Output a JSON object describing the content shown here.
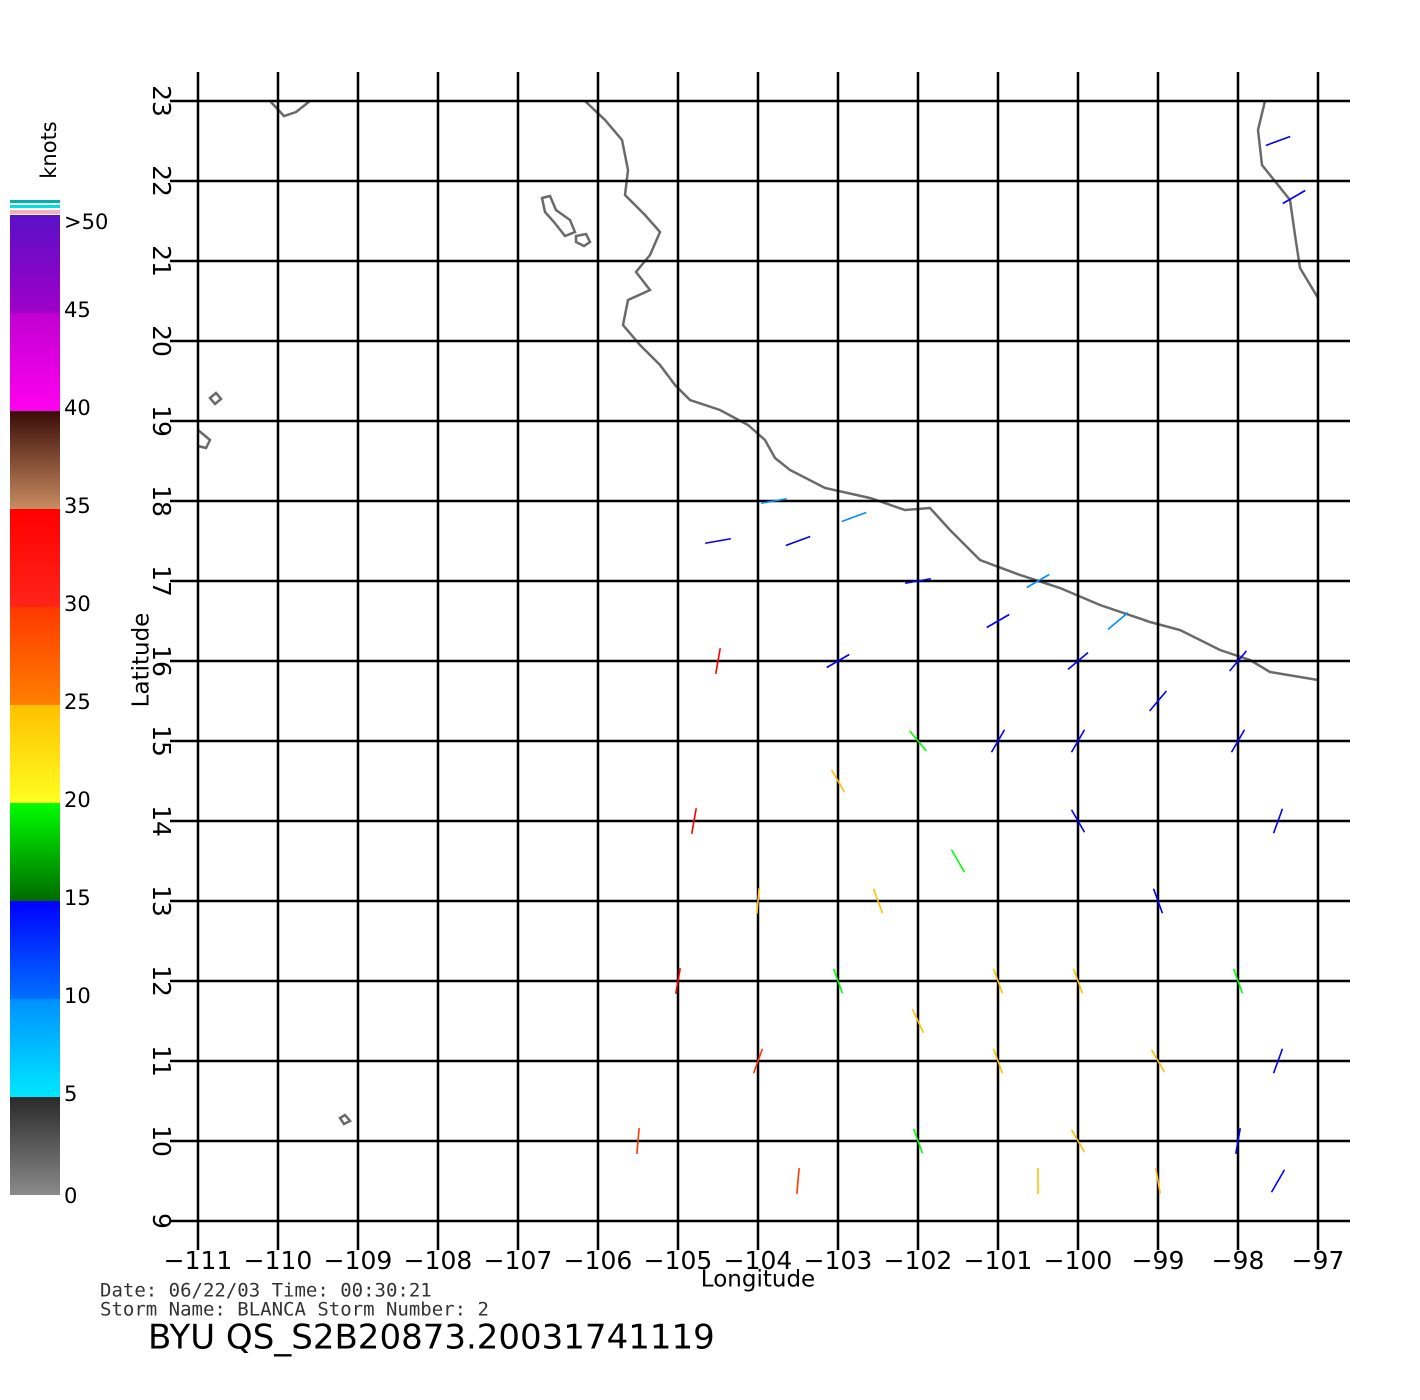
{
  "chart_data": {
    "type": "wind-map",
    "x_label": "Longitude",
    "y_label": "Latitude",
    "xlim": [
      -111,
      -97
    ],
    "ylim": [
      9,
      23
    ],
    "xticks": [
      {
        "value": -111,
        "label": "−111"
      },
      {
        "value": -110,
        "label": "−110"
      },
      {
        "value": -109,
        "label": "−109"
      },
      {
        "value": -108,
        "label": "−108"
      },
      {
        "value": -107,
        "label": "−107"
      },
      {
        "value": -106,
        "label": "−106"
      },
      {
        "value": -105,
        "label": "−105"
      },
      {
        "value": -104,
        "label": "−104"
      },
      {
        "value": -103,
        "label": "−103"
      },
      {
        "value": -102,
        "label": "−102"
      },
      {
        "value": -101,
        "label": "−101"
      },
      {
        "value": -100,
        "label": "−100"
      },
      {
        "value": -99,
        "label": "−99"
      },
      {
        "value": -98,
        "label": "−98"
      },
      {
        "value": -97,
        "label": "−97"
      }
    ],
    "yticks": [
      9,
      10,
      11,
      12,
      13,
      14,
      15,
      16,
      17,
      18,
      19,
      20,
      21,
      22,
      23
    ],
    "grid": true,
    "colorbar": {
      "label": "knots",
      "range": [
        0,
        50
      ],
      "ticks": [
        0,
        5,
        10,
        15,
        20,
        25,
        30,
        35,
        40,
        45,
        {
          "value": 50,
          "label": ">50"
        }
      ],
      "colors": [
        [
          "#8a8a8a",
          "#2a2a2a"
        ],
        [
          "#00e8ff",
          "#0090ff"
        ],
        [
          "#0070ff",
          "#0000ff"
        ],
        [
          "#006a00",
          "#00ff00"
        ],
        [
          "#ffff20",
          "#ffc000"
        ],
        [
          "#ff8000",
          "#ff3800"
        ],
        [
          "#ff2418",
          "#ff0000"
        ],
        [
          "#c88c60",
          "#3a0c08"
        ],
        [
          "#ff00f0",
          "#c000d0"
        ],
        [
          "#a000c8",
          "#5a10c8"
        ]
      ]
    },
    "winds": {
      "lon": [
        -104.5,
        -104.8,
        -105,
        -105.5,
        -104,
        -103.5,
        -103,
        -102.5,
        -101,
        -100,
        -99,
        -102,
        -103,
        -101.5,
        -104,
        -103.5,
        -102,
        -101,
        -100,
        -99,
        -98,
        -97.5,
        -100,
        -99,
        -98,
        -97.5,
        -98,
        -97.5,
        -103.8,
        -102.8,
        -100.5,
        -99.5,
        -98,
        -101,
        -100,
        -102,
        -99,
        -100.5,
        -97.5,
        -97.3,
        -104.5,
        -103,
        -102,
        -101,
        -100
      ],
      "lat": [
        16,
        14,
        12,
        10,
        11,
        9.5,
        14.5,
        13,
        11,
        10,
        11,
        10,
        12,
        13.5,
        13,
        17.5,
        17,
        16.5,
        16,
        15.5,
        15,
        14,
        14,
        13,
        12,
        11,
        10,
        9.5,
        18,
        17.8,
        17,
        16.5,
        16,
        12,
        12,
        11.5,
        9.5,
        9.5,
        22.5,
        21.8,
        17.5,
        16,
        15,
        15,
        15
      ],
      "speed": [
        30,
        31,
        30,
        27,
        28,
        29,
        22,
        21,
        22,
        21,
        20,
        19,
        18,
        17,
        22,
        12,
        11,
        10,
        11,
        12,
        12,
        13,
        12,
        13,
        16,
        13,
        12,
        13,
        8,
        9,
        8,
        9,
        10,
        23,
        20,
        22,
        22,
        24,
        12,
        11,
        12,
        14,
        17,
        12,
        11
      ],
      "direction": [
        100,
        100,
        100,
        95,
        110,
        95,
        60,
        70,
        70,
        60,
        60,
        70,
        70,
        60,
        95,
        160,
        170,
        150,
        140,
        130,
        120,
        110,
        60,
        70,
        70,
        110,
        100,
        120,
        170,
        160,
        150,
        140,
        130,
        70,
        70,
        65,
        80,
        90,
        160,
        150,
        170,
        150,
        50,
        120,
        120
      ]
    },
    "date_line": "Date:  06/22/03   Time:  00:30:21",
    "storm_line": "Storm  Name:  BLANCA    Storm  Number:  2",
    "file_label": "BYU  QS_S2B20873.20031741119"
  }
}
